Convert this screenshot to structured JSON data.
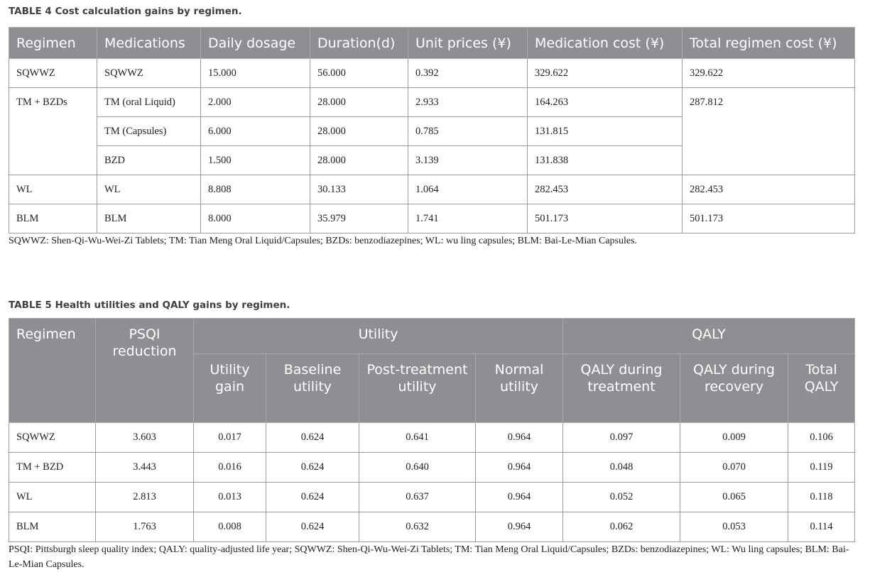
{
  "table4": {
    "caption": "TABLE 4 Cost calculation gains by regimen.",
    "headers": [
      "Regimen",
      "Medications",
      "Daily dosage",
      "Duration(d)",
      "Unit prices (¥)",
      "Medication cost (¥)",
      "Total regimen cost (¥)"
    ],
    "rows": [
      {
        "regimen": "SQWWZ",
        "medication": "SQWWZ",
        "daily_dosage": "15.000",
        "duration": "56.000",
        "unit_price": "0.392",
        "medication_cost": "329.622",
        "total": "329.622"
      },
      {
        "regimen": "TM + BZDs",
        "medication": "TM (oral Liquid)",
        "daily_dosage": "2.000",
        "duration": "28.000",
        "unit_price": "2.933",
        "medication_cost": "164.263",
        "total": "287.812"
      },
      {
        "medication": "TM (Capsules)",
        "daily_dosage": "6.000",
        "duration": "28.000",
        "unit_price": "0.785",
        "medication_cost": "131.815"
      },
      {
        "medication": "BZD",
        "daily_dosage": "1.500",
        "duration": "28.000",
        "unit_price": "3.139",
        "medication_cost": "131.838"
      },
      {
        "regimen": "WL",
        "medication": "WL",
        "daily_dosage": "8.808",
        "duration": "30.133",
        "unit_price": "1.064",
        "medication_cost": "282.453",
        "total": "282.453"
      },
      {
        "regimen": "BLM",
        "medication": "BLM",
        "daily_dosage": "8.000",
        "duration": "35.979",
        "unit_price": "1.741",
        "medication_cost": "501.173",
        "total": "501.173"
      }
    ],
    "footnote": "SQWWZ: Shen-Qi-Wu-Wei-Zi Tablets; TM: Tian Meng Oral Liquid/Capsules; BZDs: benzodiazepines; WL: wu ling capsules; BLM: Bai-Le-Mian Capsules."
  },
  "table5": {
    "caption": "TABLE 5 Health utilities and QALY gains by regimen.",
    "group_headers": {
      "regimen": "Regimen",
      "psqi": "PSQI reduction",
      "utility": "Utility",
      "qaly": "QALY"
    },
    "sub_headers": [
      "Utility gain",
      "Baseline utility",
      "Post-treatment utility",
      "Normal utility",
      "QALY during treatment",
      "QALY during recovery",
      "Total QALY"
    ],
    "rows": [
      [
        "SQWWZ",
        "3.603",
        "0.017",
        "0.624",
        "0.641",
        "0.964",
        "0.097",
        "0.009",
        "0.106"
      ],
      [
        "TM + BZD",
        "3.443",
        "0.016",
        "0.624",
        "0.640",
        "0.964",
        "0.048",
        "0.070",
        "0.119"
      ],
      [
        "WL",
        "2.813",
        "0.013",
        "0.624",
        "0.637",
        "0.964",
        "0.052",
        "0.065",
        "0.118"
      ],
      [
        "BLM",
        "1.763",
        "0.008",
        "0.624",
        "0.632",
        "0.964",
        "0.062",
        "0.053",
        "0.114"
      ]
    ],
    "footnote": "PSQI: Pittsburgh sleep quality index; QALY: quality-adjusted life year; SQWWZ: Shen-Qi-Wu-Wei-Zi Tablets; TM: Tian Meng Oral Liquid/Capsules; BZDs: benzodiazepines; WL: Wu ling capsules; BLM: Bai-Le-Mian Capsules."
  }
}
